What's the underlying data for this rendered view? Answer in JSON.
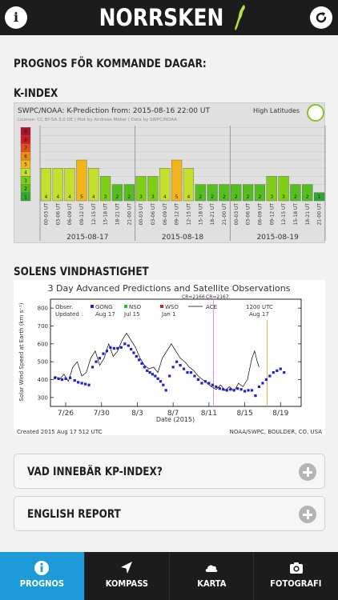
{
  "header": {
    "logo_text": "NORRSKEN",
    "info_icon": "info-icon",
    "refresh_icon": "refresh-icon"
  },
  "main": {
    "forecast_heading": "PROGNOS FÖR KOMMANDE DAGAR:",
    "kindex_heading": "K-INDEX",
    "solar_wind_heading": "SOLENS VINDHASTIGHET"
  },
  "chart_data": [
    {
      "type": "bar",
      "title": "SWPC/NOAA: K-Prediction from: 2015-08-16 22:00 UT",
      "subtitle": "License: CC BY-SA 3.0 DE | Plot by Andreas Möller | Data by SWPC/NOAA",
      "legend": "High Latitudes",
      "y_scale": [
        "1",
        "2",
        "3",
        "4",
        "5",
        "6",
        "7",
        "8",
        "9"
      ],
      "days": [
        "2015-08-17",
        "2015-08-18",
        "2015-08-19"
      ],
      "categories": [
        "00-03 UT",
        "03-06 UT",
        "06-09 UT",
        "09-12 UT",
        "12-15 UT",
        "15-18 UT",
        "18-21 UT",
        "21-00 UT",
        "00-03 UT",
        "03-06 UT",
        "06-09 UT",
        "09-12 UT",
        "12-15 UT",
        "15-18 UT",
        "18-21 UT",
        "21-00 UT",
        "00-03 UT",
        "03-06 UT",
        "06-09 UT",
        "09-12 UT",
        "12-15 UT",
        "15-18 UT",
        "18-21 UT",
        "21-00 UT"
      ],
      "values": [
        4,
        4,
        4,
        5,
        4,
        3,
        2,
        2,
        3,
        3,
        4,
        5,
        4,
        2,
        2,
        2,
        2,
        2,
        2,
        3,
        3,
        2,
        2,
        1
      ],
      "colors": {
        "1": "#2fa82f",
        "2": "#55bf20",
        "3": "#7fcf18",
        "4": "#c5df2e",
        "5": "#f2b51c",
        "6": "#ee8c18",
        "7": "#e64c1c",
        "8": "#d6181c",
        "9": "#a8102c"
      }
    },
    {
      "type": "scatter",
      "title": "3 Day Advanced Predictions and Satellite Observations",
      "ylabel": "Solar Wind Speed at Earth (km s⁻¹)",
      "xlabel": "Date (2015)",
      "x_ticks": [
        "7/26",
        "7/30",
        "8/3",
        "8/7",
        "8/11",
        "8/15",
        "8/19"
      ],
      "y_ticks": [
        "300",
        "400",
        "500",
        "600",
        "700",
        "800"
      ],
      "ylim": [
        250,
        850
      ],
      "legend": [
        {
          "name": "Obser.",
          "text": "Updated :"
        },
        {
          "name": "GONG",
          "date": "Aug 17",
          "color": "#2020d0"
        },
        {
          "name": "NSO",
          "date": "Jul 15",
          "color": "#20c020"
        },
        {
          "name": "WSO",
          "date": "Jan 1",
          "color": "#d02020"
        },
        {
          "name": "ACE",
          "color": "#000000"
        }
      ],
      "annotations": [
        "CR=2166",
        "CR=2167",
        "1200 UTC",
        "Aug 17"
      ],
      "footer_left": "Created 2015 Aug 17 512 UTC",
      "footer_right": "NOAA/SWPC, BOULDER, CO, USA",
      "gong_points": [
        {
          "x": 24.8,
          "y": 410
        },
        {
          "x": 25.2,
          "y": 405
        },
        {
          "x": 25.6,
          "y": 400
        },
        {
          "x": 26.0,
          "y": 405
        },
        {
          "x": 26.5,
          "y": 410
        },
        {
          "x": 27.0,
          "y": 395
        },
        {
          "x": 27.4,
          "y": 385
        },
        {
          "x": 27.8,
          "y": 380
        },
        {
          "x": 28.2,
          "y": 375
        },
        {
          "x": 28.6,
          "y": 370
        },
        {
          "x": 29.0,
          "y": 470
        },
        {
          "x": 29.4,
          "y": 500
        },
        {
          "x": 29.8,
          "y": 520
        },
        {
          "x": 30.2,
          "y": 545
        },
        {
          "x": 30.6,
          "y": 560
        },
        {
          "x": 31.0,
          "y": 580
        },
        {
          "x": 31.4,
          "y": 575
        },
        {
          "x": 31.8,
          "y": 575
        },
        {
          "x": 32.2,
          "y": 580
        },
        {
          "x": 32.6,
          "y": 600
        },
        {
          "x": 33.0,
          "y": 590
        },
        {
          "x": 33.3,
          "y": 570
        },
        {
          "x": 33.6,
          "y": 550
        },
        {
          "x": 33.9,
          "y": 530
        },
        {
          "x": 34.2,
          "y": 510
        },
        {
          "x": 34.5,
          "y": 490
        },
        {
          "x": 34.8,
          "y": 470
        },
        {
          "x": 35.1,
          "y": 450
        },
        {
          "x": 35.4,
          "y": 440
        },
        {
          "x": 35.7,
          "y": 430
        },
        {
          "x": 36.0,
          "y": 420
        },
        {
          "x": 36.3,
          "y": 405
        },
        {
          "x": 36.6,
          "y": 390
        },
        {
          "x": 36.9,
          "y": 370
        },
        {
          "x": 37.2,
          "y": 340
        },
        {
          "x": 37.6,
          "y": 420
        },
        {
          "x": 38.0,
          "y": 470
        },
        {
          "x": 38.4,
          "y": 500
        },
        {
          "x": 38.8,
          "y": 480
        },
        {
          "x": 39.2,
          "y": 460
        },
        {
          "x": 39.6,
          "y": 440
        },
        {
          "x": 40.0,
          "y": 440
        },
        {
          "x": 40.4,
          "y": 420
        },
        {
          "x": 40.8,
          "y": 400
        },
        {
          "x": 41.2,
          "y": 380
        },
        {
          "x": 41.6,
          "y": 390
        },
        {
          "x": 42.0,
          "y": 380
        },
        {
          "x": 42.4,
          "y": 370
        },
        {
          "x": 42.8,
          "y": 360
        },
        {
          "x": 43.2,
          "y": 350
        },
        {
          "x": 43.6,
          "y": 345
        },
        {
          "x": 44.0,
          "y": 340
        },
        {
          "x": 44.4,
          "y": 345
        },
        {
          "x": 44.8,
          "y": 340
        },
        {
          "x": 45.2,
          "y": 350
        },
        {
          "x": 45.6,
          "y": 345
        },
        {
          "x": 46.0,
          "y": 335
        },
        {
          "x": 46.4,
          "y": 340
        },
        {
          "x": 46.8,
          "y": 340
        },
        {
          "x": 47.2,
          "y": 310
        },
        {
          "x": 47.6,
          "y": 360
        },
        {
          "x": 48.0,
          "y": 380
        },
        {
          "x": 48.4,
          "y": 400
        },
        {
          "x": 48.8,
          "y": 420
        },
        {
          "x": 49.2,
          "y": 440
        },
        {
          "x": 49.6,
          "y": 450
        },
        {
          "x": 50.0,
          "y": 460
        },
        {
          "x": 50.4,
          "y": 440
        }
      ],
      "ace_series": [
        {
          "x": 24.8,
          "y": 420
        },
        {
          "x": 25.3,
          "y": 400
        },
        {
          "x": 25.8,
          "y": 430
        },
        {
          "x": 26.3,
          "y": 390
        },
        {
          "x": 26.8,
          "y": 470
        },
        {
          "x": 27.3,
          "y": 500
        },
        {
          "x": 27.8,
          "y": 420
        },
        {
          "x": 28.3,
          "y": 440
        },
        {
          "x": 28.8,
          "y": 520
        },
        {
          "x": 29.3,
          "y": 560
        },
        {
          "x": 29.8,
          "y": 480
        },
        {
          "x": 30.3,
          "y": 520
        },
        {
          "x": 30.8,
          "y": 600
        },
        {
          "x": 31.3,
          "y": 530
        },
        {
          "x": 31.8,
          "y": 560
        },
        {
          "x": 32.3,
          "y": 620
        },
        {
          "x": 32.8,
          "y": 660
        },
        {
          "x": 33.3,
          "y": 620
        },
        {
          "x": 33.8,
          "y": 580
        },
        {
          "x": 34.3,
          "y": 520
        },
        {
          "x": 34.8,
          "y": 480
        },
        {
          "x": 35.3,
          "y": 460
        },
        {
          "x": 35.8,
          "y": 470
        },
        {
          "x": 36.3,
          "y": 440
        },
        {
          "x": 36.8,
          "y": 520
        },
        {
          "x": 37.3,
          "y": 560
        },
        {
          "x": 37.8,
          "y": 600
        },
        {
          "x": 38.3,
          "y": 560
        },
        {
          "x": 38.8,
          "y": 520
        },
        {
          "x": 39.3,
          "y": 500
        },
        {
          "x": 39.8,
          "y": 470
        },
        {
          "x": 40.3,
          "y": 450
        },
        {
          "x": 40.8,
          "y": 420
        },
        {
          "x": 41.3,
          "y": 400
        },
        {
          "x": 41.8,
          "y": 380
        },
        {
          "x": 42.3,
          "y": 360
        },
        {
          "x": 42.8,
          "y": 345
        },
        {
          "x": 43.3,
          "y": 370
        },
        {
          "x": 43.8,
          "y": 340
        },
        {
          "x": 44.3,
          "y": 360
        },
        {
          "x": 44.8,
          "y": 335
        },
        {
          "x": 45.3,
          "y": 380
        },
        {
          "x": 45.8,
          "y": 360
        },
        {
          "x": 46.3,
          "y": 400
        },
        {
          "x": 46.8,
          "y": 520
        },
        {
          "x": 47.1,
          "y": 560
        },
        {
          "x": 47.4,
          "y": 500
        },
        {
          "x": 47.6,
          "y": 470
        }
      ]
    }
  ],
  "accordion": [
    {
      "label": "VAD INNEBÄR KP-INDEX?",
      "icon": "plus-icon"
    },
    {
      "label": "ENGLISH REPORT",
      "icon": "plus-icon"
    }
  ],
  "tabs": [
    {
      "label": "PROGNOS",
      "icon": "info-icon",
      "active": true
    },
    {
      "label": "KOMPASS",
      "icon": "compass-arrow-icon",
      "active": false
    },
    {
      "label": "KARTA",
      "icon": "cloud-icon",
      "active": false
    },
    {
      "label": "FOTOGRAFI",
      "icon": "camera-icon",
      "active": false
    }
  ]
}
